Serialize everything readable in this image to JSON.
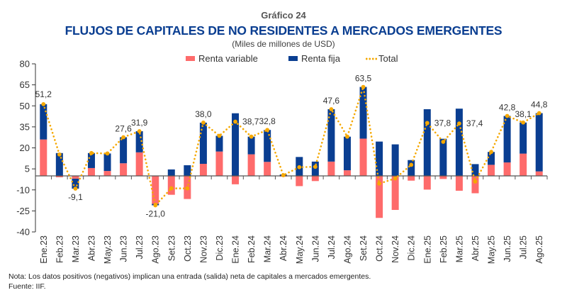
{
  "header": {
    "supertitle": "Gráfico 24",
    "title": "FLUJOS DE CAPITALES DE NO RESIDENTES A MERCADOS EMERGENTES",
    "subtitle": "(Miles de millones de USD)"
  },
  "legend": {
    "items": [
      {
        "label": "Renta variable",
        "color": "#fe6b6b",
        "kind": "bar"
      },
      {
        "label": "Renta fija",
        "color": "#0a3e91",
        "kind": "bar"
      },
      {
        "label": "Total",
        "color": "#f5a800",
        "kind": "dotted-line"
      }
    ]
  },
  "footer": {
    "note": "Nota: Los datos positivos (negativos) implican una entrada (salida) neta de capitales a mercados emergentes.",
    "source": "Fuente: IIF."
  },
  "chart_data": {
    "type": "bar",
    "stacked": true,
    "title": "FLUJOS DE CAPITALES DE NO RESIDENTES A MERCADOS EMERGENTES",
    "subtitle": "(Miles de millones de USD)",
    "xlabel": "",
    "ylabel": "",
    "ylim": [
      -40,
      80
    ],
    "yticks": [
      80,
      65,
      50,
      35,
      20,
      5,
      -10,
      -25,
      -40
    ],
    "grid": false,
    "legend_position": "top-center",
    "categories": [
      "Ene.23",
      "Feb.23",
      "Mar.23",
      "Abr.23",
      "May.23",
      "Jun.23",
      "Jul.23",
      "Ago.23",
      "Set.23",
      "Oct.23",
      "Nov.23",
      "Dic.23",
      "Ene.24",
      "Feb.24",
      "Mar.24",
      "Abr.24",
      "May.24",
      "Jun.24",
      "Jul.24",
      "Ago.24",
      "Set.24",
      "Oct.24",
      "Nov.24",
      "Dic.24",
      "Ene.25",
      "Feb.25",
      "Mar.25",
      "Abr.25",
      "May.25",
      "Jun.25",
      "Jul.25",
      "Ago.25"
    ],
    "series": [
      {
        "name": "Renta variable",
        "type": "bar",
        "color": "#fe6b6b",
        "values": [
          26.0,
          -1.0,
          -2.0,
          5.6,
          3.5,
          9.0,
          16.8,
          -20.0,
          -13.5,
          -16.5,
          8.6,
          17.4,
          -6.0,
          15.4,
          10.0,
          -0.5,
          -7.3,
          -3.7,
          10.2,
          4.0,
          26.6,
          -30.0,
          -24.3,
          -3.4,
          -9.8,
          -2.2,
          -10.6,
          -12.4,
          7.9,
          9.6,
          15.9,
          3.2
        ]
      },
      {
        "name": "Renta fija",
        "type": "bar",
        "color": "#0a3e91",
        "values": [
          25.2,
          16.3,
          -7.1,
          10.7,
          12.5,
          18.6,
          15.1,
          -1.0,
          4.6,
          7.6,
          29.4,
          11.2,
          44.7,
          12.6,
          22.8,
          1.0,
          13.5,
          10.2,
          37.4,
          24.0,
          36.9,
          24.5,
          22.5,
          11.3,
          47.6,
          26.5,
          48.0,
          8.4,
          9.2,
          33.2,
          22.2,
          41.6
        ]
      },
      {
        "name": "Total",
        "type": "line",
        "style": "dotted",
        "color": "#f5a800",
        "values": [
          51.2,
          15.3,
          -9.1,
          16.3,
          16.0,
          27.6,
          31.9,
          -21.0,
          -8.9,
          -8.9,
          38.0,
          28.6,
          38.7,
          28.0,
          32.8,
          0.5,
          6.2,
          6.5,
          47.6,
          28.0,
          63.5,
          -5.5,
          -1.8,
          7.9,
          37.8,
          24.3,
          37.4,
          -4.0,
          17.1,
          42.8,
          38.1,
          44.8
        ]
      }
    ],
    "data_labels": [
      {
        "category": "Ene.23",
        "text": "51,2",
        "position": "above"
      },
      {
        "category": "Mar.23",
        "text": "-9,1",
        "position": "below"
      },
      {
        "category": "Jun.23",
        "text": "27,6",
        "position": "above"
      },
      {
        "category": "Jul.23",
        "text": "31,9",
        "position": "above"
      },
      {
        "category": "Ago.23",
        "text": "-21,0",
        "position": "below"
      },
      {
        "category": "Nov.23",
        "text": "38,0",
        "position": "above"
      },
      {
        "category": "Ene.24",
        "text": "38,7",
        "position": "right"
      },
      {
        "category": "Mar.24",
        "text": "32,8",
        "position": "above"
      },
      {
        "category": "Jul.24",
        "text": "47,6",
        "position": "above"
      },
      {
        "category": "Set.24",
        "text": "63,5",
        "position": "above"
      },
      {
        "category": "Ene.25",
        "text": "37,8",
        "position": "right"
      },
      {
        "category": "Mar.25",
        "text": "37,4",
        "position": "right"
      },
      {
        "category": "Jun.25",
        "text": "42,8",
        "position": "above"
      },
      {
        "category": "Jul.25",
        "text": "38,1",
        "position": "above"
      },
      {
        "category": "Ago.25",
        "text": "44,8",
        "position": "above"
      }
    ]
  }
}
